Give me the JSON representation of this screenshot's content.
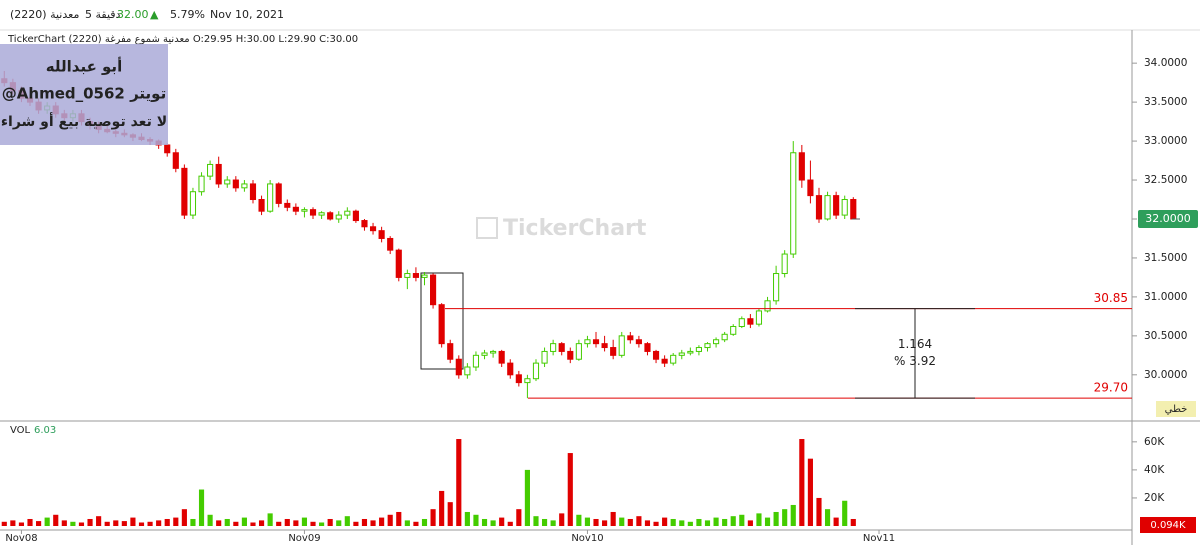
{
  "header": {
    "symbol": "معدنية (2220)",
    "interval": "5 دقيقة",
    "price": "32.00",
    "arrow": "▲",
    "change": "5.79%",
    "date": "Nov 10, 2021"
  },
  "info_line": "TickerChart معدنية شموع مفرغة (2220) O:29.95 H:30.00 L:29.90 C:30.00",
  "watermark": "TickerChart",
  "note": [
    "أبو عبدالله",
    "@Ahmed_0562 تويتر",
    "لا تعد توصية بيع أو شراء"
  ],
  "chart_data": [
    {
      "type": "candlestick",
      "up_color": "#44cc00",
      "down_color": "#e00000",
      "xlim": [
        -0.5,
        131.5
      ],
      "xticks": [
        {
          "value": 2,
          "label": "Nov08"
        },
        {
          "value": 35,
          "label": "Nov09"
        },
        {
          "value": 68,
          "label": "Nov10"
        },
        {
          "value": 102,
          "label": "Nov11"
        }
      ],
      "ylim": [
        29.42,
        34.4
      ],
      "yticks": [
        {
          "value": 30,
          "label": "30.0000"
        },
        {
          "value": 30.5,
          "label": "30.5000"
        },
        {
          "value": 31,
          "label": "31.0000"
        },
        {
          "value": 31.5,
          "label": "31.5000"
        },
        {
          "value": 32,
          "label": "32.0000"
        },
        {
          "value": 32.5,
          "label": "32.5000"
        },
        {
          "value": 33,
          "label": "33.0000"
        },
        {
          "value": 33.5,
          "label": "33.5000"
        },
        {
          "value": 34,
          "label": "34.0000"
        }
      ],
      "last_price": {
        "value": 32,
        "label": "32.0000"
      },
      "scale_label": "خطي",
      "lines": [
        {
          "value": 30.85,
          "label": "30.85"
        },
        {
          "value": 29.7,
          "label": "29.70"
        }
      ],
      "measure_labels": [
        "1.164",
        "% 3.92"
      ],
      "candles": [
        [
          33.8,
          33.9,
          33.7,
          33.75
        ],
        [
          33.75,
          33.8,
          33.6,
          33.65
        ],
        [
          33.65,
          33.7,
          33.5,
          33.55
        ],
        [
          33.55,
          33.6,
          33.45,
          33.5
        ],
        [
          33.5,
          33.55,
          33.35,
          33.4
        ],
        [
          33.4,
          33.5,
          33.35,
          33.45
        ],
        [
          33.45,
          33.5,
          33.3,
          33.35
        ],
        [
          33.35,
          33.4,
          33.25,
          33.3
        ],
        [
          33.3,
          33.4,
          33.25,
          33.35
        ],
        [
          33.35,
          33.4,
          33.2,
          33.25
        ],
        [
          33.25,
          33.3,
          33.15,
          33.2
        ],
        [
          33.2,
          33.25,
          33.1,
          33.15
        ],
        [
          33.15,
          33.2,
          33.1,
          33.12
        ],
        [
          33.12,
          33.2,
          33.05,
          33.1
        ],
        [
          33.1,
          33.15,
          33.05,
          33.08
        ],
        [
          33.08,
          33.1,
          33.0,
          33.05
        ],
        [
          33.05,
          33.1,
          33.0,
          33.02
        ],
        [
          33.02,
          33.05,
          32.95,
          33.0
        ],
        [
          33.0,
          33.02,
          32.9,
          32.95
        ],
        [
          32.95,
          32.97,
          32.8,
          32.85
        ],
        [
          32.85,
          32.9,
          32.6,
          32.65
        ],
        [
          32.65,
          32.7,
          32.0,
          32.05
        ],
        [
          32.05,
          32.4,
          32.0,
          32.35
        ],
        [
          32.35,
          32.6,
          32.3,
          32.55
        ],
        [
          32.55,
          32.75,
          32.5,
          32.7
        ],
        [
          32.7,
          32.8,
          32.4,
          32.45
        ],
        [
          32.45,
          32.55,
          32.4,
          32.5
        ],
        [
          32.5,
          32.55,
          32.35,
          32.4
        ],
        [
          32.4,
          32.5,
          32.35,
          32.45
        ],
        [
          32.45,
          32.5,
          32.2,
          32.25
        ],
        [
          32.25,
          32.3,
          32.05,
          32.1
        ],
        [
          32.1,
          32.5,
          32.08,
          32.45
        ],
        [
          32.45,
          32.47,
          32.15,
          32.2
        ],
        [
          32.2,
          32.25,
          32.1,
          32.15
        ],
        [
          32.15,
          32.2,
          32.05,
          32.1
        ],
        [
          32.1,
          32.15,
          32.02,
          32.12
        ],
        [
          32.12,
          32.15,
          32.0,
          32.05
        ],
        [
          32.05,
          32.1,
          32.0,
          32.08
        ],
        [
          32.08,
          32.1,
          31.98,
          32.0
        ],
        [
          32.0,
          32.1,
          31.95,
          32.05
        ],
        [
          32.05,
          32.15,
          32.0,
          32.1
        ],
        [
          32.1,
          32.12,
          31.95,
          31.98
        ],
        [
          31.98,
          32.0,
          31.85,
          31.9
        ],
        [
          31.9,
          31.95,
          31.8,
          31.85
        ],
        [
          31.85,
          31.9,
          31.7,
          31.75
        ],
        [
          31.75,
          31.78,
          31.55,
          31.6
        ],
        [
          31.6,
          31.62,
          31.2,
          31.25
        ],
        [
          31.25,
          31.35,
          31.1,
          31.3
        ],
        [
          31.3,
          31.38,
          31.2,
          31.25
        ],
        [
          31.25,
          31.32,
          31.15,
          31.28
        ],
        [
          31.28,
          31.3,
          30.85,
          30.9
        ],
        [
          30.9,
          30.92,
          30.35,
          30.4
        ],
        [
          30.4,
          30.45,
          30.15,
          30.2
        ],
        [
          30.2,
          30.25,
          29.95,
          30.0
        ],
        [
          30.0,
          30.15,
          29.95,
          30.1
        ],
        [
          30.1,
          30.3,
          30.05,
          30.25
        ],
        [
          30.25,
          30.32,
          30.2,
          30.28
        ],
        [
          30.28,
          30.32,
          30.22,
          30.3
        ],
        [
          30.3,
          30.32,
          30.1,
          30.15
        ],
        [
          30.15,
          30.2,
          29.95,
          30.0
        ],
        [
          30.0,
          30.05,
          29.85,
          29.9
        ],
        [
          29.9,
          30.0,
          29.7,
          29.95
        ],
        [
          29.95,
          30.2,
          29.92,
          30.15
        ],
        [
          30.15,
          30.35,
          30.1,
          30.3
        ],
        [
          30.3,
          30.45,
          30.25,
          30.4
        ],
        [
          30.4,
          30.42,
          30.25,
          30.3
        ],
        [
          30.3,
          30.35,
          30.15,
          30.2
        ],
        [
          30.2,
          30.45,
          30.18,
          30.4
        ],
        [
          30.4,
          30.5,
          30.35,
          30.45
        ],
        [
          30.45,
          30.55,
          30.35,
          30.4
        ],
        [
          30.4,
          30.5,
          30.3,
          30.35
        ],
        [
          30.35,
          30.45,
          30.2,
          30.25
        ],
        [
          30.25,
          30.55,
          30.22,
          30.5
        ],
        [
          30.5,
          30.55,
          30.4,
          30.45
        ],
        [
          30.45,
          30.5,
          30.35,
          30.4
        ],
        [
          30.4,
          30.42,
          30.25,
          30.3
        ],
        [
          30.3,
          30.32,
          30.15,
          30.2
        ],
        [
          30.2,
          30.25,
          30.1,
          30.15
        ],
        [
          30.15,
          30.28,
          30.12,
          30.25
        ],
        [
          30.25,
          30.32,
          30.2,
          30.28
        ],
        [
          30.28,
          30.35,
          30.25,
          30.3
        ],
        [
          30.3,
          30.38,
          30.25,
          30.35
        ],
        [
          30.35,
          30.42,
          30.3,
          30.4
        ],
        [
          30.4,
          30.48,
          30.35,
          30.45
        ],
        [
          30.45,
          30.55,
          30.42,
          30.52
        ],
        [
          30.52,
          30.65,
          30.5,
          30.62
        ],
        [
          30.62,
          30.75,
          30.6,
          30.72
        ],
        [
          30.72,
          30.78,
          30.6,
          30.65
        ],
        [
          30.65,
          30.85,
          30.62,
          30.82
        ],
        [
          30.82,
          31.0,
          30.8,
          30.95
        ],
        [
          30.95,
          31.4,
          30.9,
          31.3
        ],
        [
          31.3,
          31.6,
          31.25,
          31.55
        ],
        [
          31.55,
          33.0,
          31.5,
          32.85
        ],
        [
          32.85,
          32.95,
          32.4,
          32.5
        ],
        [
          32.5,
          32.75,
          32.2,
          32.3
        ],
        [
          32.3,
          32.4,
          31.95,
          32.0
        ],
        [
          32.0,
          32.35,
          31.98,
          32.3
        ],
        [
          32.3,
          32.35,
          32.0,
          32.05
        ],
        [
          32.05,
          32.3,
          32.0,
          32.25
        ],
        [
          32.25,
          32.28,
          32.0,
          32.0
        ]
      ]
    },
    {
      "type": "bar",
      "title": "VOL",
      "value_text": "6.03",
      "last_label": "0.094K",
      "xlim": [
        -0.5,
        131.5
      ],
      "ylim": [
        0,
        72000
      ],
      "yticks": [
        {
          "value": 20000,
          "label": "20K"
        },
        {
          "value": 40000,
          "label": "40K"
        },
        {
          "value": 60000,
          "label": "60K"
        }
      ],
      "values": [
        3000,
        4000,
        2500,
        5000,
        3500,
        6000,
        8000,
        4000,
        3000,
        2500,
        5000,
        7000,
        3000,
        4000,
        3500,
        6000,
        2500,
        3000,
        4000,
        5000,
        6000,
        12000,
        5000,
        26000,
        8000,
        4000,
        5000,
        3000,
        6000,
        2500,
        4000,
        9000,
        3000,
        5000,
        4000,
        6000,
        3000,
        2500,
        5000,
        4000,
        7000,
        3000,
        5000,
        4000,
        6000,
        8000,
        10000,
        4000,
        3000,
        5000,
        12000,
        25000,
        17000,
        62000,
        10000,
        8000,
        5000,
        4000,
        6000,
        3000,
        12000,
        40000,
        7000,
        5000,
        4000,
        9000,
        52000,
        8000,
        6000,
        5000,
        4000,
        10000,
        6000,
        5000,
        7000,
        4000,
        3000,
        6000,
        5000,
        4000,
        3000,
        5000,
        4000,
        6000,
        5000,
        7000,
        8000,
        4000,
        9000,
        6000,
        10000,
        12000,
        15000,
        62000,
        48000,
        20000,
        12000,
        6000,
        18000,
        5000
      ]
    }
  ]
}
